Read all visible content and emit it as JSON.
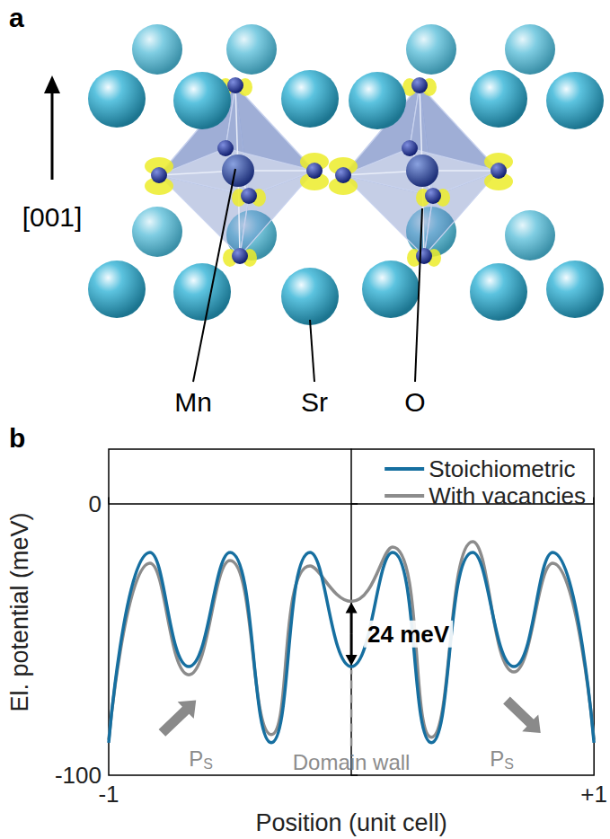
{
  "panel_a": {
    "letter": "a",
    "direction_label": "[001]",
    "atom_labels": [
      "Mn",
      "Sr",
      "O"
    ]
  },
  "chart_data": {
    "type": "line",
    "panel_label": "b",
    "x_label": "Position (unit cell)",
    "y_label": "El. potential (meV)",
    "x": [
      -1,
      -0.83,
      -0.67,
      -0.5,
      -0.33,
      -0.17,
      0,
      0.17,
      0.33,
      0.5,
      0.67,
      0.83,
      1
    ],
    "series": [
      {
        "name": "Stoichiometric",
        "color": "#166fa0",
        "values": [
          -88,
          -18,
          -60,
          -18,
          -88,
          -18,
          -60,
          -18,
          -88,
          -18,
          -60,
          -18,
          -88
        ]
      },
      {
        "name": "With vacancies",
        "color": "#8c8c8c",
        "values": [
          -87,
          -22,
          -63,
          -21,
          -85,
          -23,
          -36,
          -16,
          -86,
          -14,
          -62,
          -22,
          -87
        ]
      }
    ],
    "xlim": [
      -1,
      1
    ],
    "xticks": [
      {
        "value": -1,
        "label": "-1"
      },
      {
        "value": 1,
        "label": "+1"
      }
    ],
    "ylim": [
      -100,
      20
    ],
    "yticks": [
      -100,
      0
    ],
    "grid": false,
    "legend": "top-right",
    "annotations": {
      "difference": "24 meV",
      "domain_wall": "Domain wall",
      "polarization": {
        "symbol": "P",
        "subscript": "S"
      }
    }
  }
}
